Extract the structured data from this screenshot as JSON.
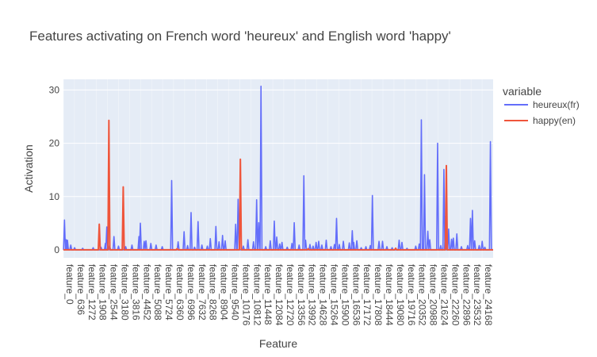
{
  "chart_data": {
    "type": "line",
    "title": "Features activating on French word 'heureux' and English word 'happy'",
    "xlabel": "Feature",
    "ylabel": "Activation",
    "ylim": [
      -1.5,
      32
    ],
    "yticks": [
      0,
      10,
      20,
      30
    ],
    "grid": true,
    "legend_title": "variable",
    "legend_position": "right",
    "x_tick_labels": [
      "feature_0",
      "feature_636",
      "feature_1272",
      "feature_1908",
      "feature_2544",
      "feature_3180",
      "feature_3816",
      "feature_4452",
      "feature_5088",
      "feature_5724",
      "feature_6360",
      "feature_6996",
      "feature_7632",
      "feature_8268",
      "feature_8904",
      "feature_9540",
      "feature_10176",
      "feature_10812",
      "feature_11448",
      "feature_12084",
      "feature_12720",
      "feature_13356",
      "feature_13992",
      "feature_14628",
      "feature_15264",
      "feature_15900",
      "feature_16536",
      "feature_17172",
      "feature_17808",
      "feature_18444",
      "feature_19080",
      "feature_19716",
      "feature_20352",
      "feature_20988",
      "feature_21624",
      "feature_22260",
      "feature_22896",
      "feature_23532",
      "feature_24168"
    ],
    "x_range": [
      0,
      24576
    ],
    "series": [
      {
        "name": "heureux(fr)",
        "color": "#636efa",
        "spikes": [
          [
            60,
            5.6
          ],
          [
            160,
            1.9
          ],
          [
            230,
            1.8
          ],
          [
            420,
            0.9
          ],
          [
            640,
            0.4
          ],
          [
            1100,
            0.3
          ],
          [
            1700,
            0.4
          ],
          [
            2150,
            0.5
          ],
          [
            2400,
            1.2
          ],
          [
            2480,
            4.3
          ],
          [
            2640,
            0.9
          ],
          [
            2890,
            2.5
          ],
          [
            3150,
            0.7
          ],
          [
            3560,
            0.6
          ],
          [
            3920,
            0.9
          ],
          [
            4320,
            2.5
          ],
          [
            4400,
            5.0
          ],
          [
            4620,
            1.6
          ],
          [
            4720,
            1.7
          ],
          [
            5000,
            1.2
          ],
          [
            5300,
            0.9
          ],
          [
            5650,
            0.6
          ],
          [
            6190,
            13.0
          ],
          [
            6560,
            1.5
          ],
          [
            6900,
            3.4
          ],
          [
            7100,
            0.8
          ],
          [
            7300,
            7.0
          ],
          [
            7500,
            0.5
          ],
          [
            7700,
            5.3
          ],
          [
            7920,
            0.9
          ],
          [
            8230,
            0.7
          ],
          [
            8400,
            2.1
          ],
          [
            8720,
            4.4
          ],
          [
            8900,
            1.5
          ],
          [
            9100,
            2.7
          ],
          [
            9250,
            1.7
          ],
          [
            9850,
            4.8
          ],
          [
            9990,
            9.5
          ],
          [
            10290,
            0.7
          ],
          [
            10550,
            1.9
          ],
          [
            10870,
            1.5
          ],
          [
            11050,
            9.4
          ],
          [
            11170,
            5.1
          ],
          [
            11300,
            30.7
          ],
          [
            11570,
            0.6
          ],
          [
            11830,
            1.7
          ],
          [
            12060,
            5.4
          ],
          [
            12200,
            2.4
          ],
          [
            12370,
            1.1
          ],
          [
            12500,
            1.4
          ],
          [
            12800,
            0.5
          ],
          [
            13070,
            1.2
          ],
          [
            13200,
            5.1
          ],
          [
            13480,
            0.9
          ],
          [
            13750,
            13.9
          ],
          [
            13850,
            1.8
          ],
          [
            14100,
            1.0
          ],
          [
            14280,
            0.7
          ],
          [
            14450,
            1.4
          ],
          [
            14600,
            1.6
          ],
          [
            14780,
            0.9
          ],
          [
            15030,
            1.8
          ],
          [
            15300,
            0.6
          ],
          [
            15500,
            1.0
          ],
          [
            15620,
            5.9
          ],
          [
            15780,
            1.0
          ],
          [
            16010,
            1.6
          ],
          [
            16350,
            1.3
          ],
          [
            16520,
            3.6
          ],
          [
            16600,
            1.4
          ],
          [
            16780,
            1.7
          ],
          [
            17030,
            0.4
          ],
          [
            17300,
            0.6
          ],
          [
            17550,
            0.8
          ],
          [
            17670,
            10.2
          ],
          [
            18050,
            1.6
          ],
          [
            18250,
            1.6
          ],
          [
            18500,
            0.6
          ],
          [
            18800,
            0.4
          ],
          [
            19200,
            1.8
          ],
          [
            19360,
            1.4
          ],
          [
            19650,
            0.3
          ],
          [
            20150,
            0.7
          ],
          [
            20350,
            1.1
          ],
          [
            20470,
            24.4
          ],
          [
            20650,
            14.1
          ],
          [
            20840,
            3.5
          ],
          [
            20950,
            1.9
          ],
          [
            21400,
            20.0
          ],
          [
            21580,
            0.8
          ],
          [
            21760,
            15.1
          ],
          [
            21850,
            6.3
          ],
          [
            22030,
            3.9
          ],
          [
            22200,
            2.0
          ],
          [
            22300,
            2.2
          ],
          [
            22500,
            3.0
          ],
          [
            22760,
            0.6
          ],
          [
            23120,
            0.8
          ],
          [
            23280,
            5.9
          ],
          [
            23390,
            7.4
          ],
          [
            23520,
            1.7
          ],
          [
            23780,
            0.8
          ],
          [
            23950,
            1.6
          ],
          [
            24100,
            0.5
          ],
          [
            24420,
            20.3
          ]
        ]
      },
      {
        "name": "happy(en)",
        "color": "#ef553b",
        "spikes": [
          [
            2050,
            4.8
          ],
          [
            2600,
            24.3
          ],
          [
            3420,
            11.8
          ],
          [
            10120,
            17.0
          ],
          [
            21900,
            15.8
          ],
          [
            19000,
            0.3
          ],
          [
            6500,
            0.2
          ],
          [
            14000,
            0.2
          ]
        ]
      }
    ]
  }
}
